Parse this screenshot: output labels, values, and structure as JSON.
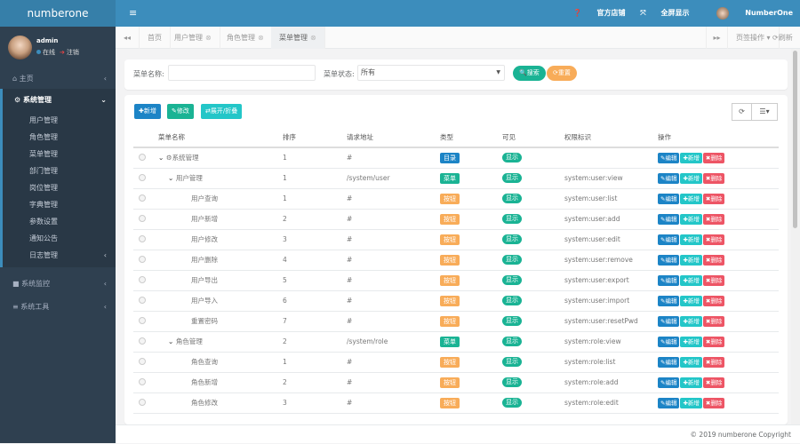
{
  "app": {
    "logo": "numberone"
  },
  "user": {
    "name": "admin",
    "status": "在线",
    "logout": "注销"
  },
  "sidebar": {
    "items": [
      {
        "label": "主页",
        "icon": "home-icon"
      },
      {
        "label": "系统管理",
        "icon": "gear-icon",
        "children": [
          "用户管理",
          "角色管理",
          "菜单管理",
          "部门管理",
          "岗位管理",
          "字典管理",
          "参数设置",
          "通知公告",
          "日志管理"
        ]
      },
      {
        "label": "系统监控",
        "icon": "video-icon"
      },
      {
        "label": "系统工具",
        "icon": "bars-icon"
      }
    ]
  },
  "header": {
    "store": "官方店铺",
    "fullscreen": "全屏显示",
    "username": "NumberOne"
  },
  "tabs": {
    "items": [
      "首页",
      "用户管理",
      "角色管理",
      "菜单管理"
    ],
    "page_ops": "页签操作",
    "refresh": "刷新"
  },
  "search": {
    "name_label": "菜单名称:",
    "name_value": "",
    "status_label": "菜单状态:",
    "status_value": "所有",
    "search_btn": "搜索",
    "reset_btn": "重置"
  },
  "toolbar": {
    "add": "新增",
    "edit": "修改",
    "expand": "展开/折叠"
  },
  "table": {
    "headers": [
      "菜单名称",
      "排序",
      "请求地址",
      "类型",
      "可见",
      "权限标识",
      "操作"
    ],
    "actions": {
      "edit": "编辑",
      "add": "新增",
      "delete": "删除"
    },
    "rows": [
      {
        "name": "系统管理",
        "level": 0,
        "expand": true,
        "icon": true,
        "sort": "1",
        "url": "#",
        "type": "目录",
        "visible": "显示",
        "perm": ""
      },
      {
        "name": "用户管理",
        "level": 1,
        "expand": true,
        "sort": "1",
        "url": "/system/user",
        "type": "菜单",
        "visible": "显示",
        "perm": "system:user:view"
      },
      {
        "name": "用户查询",
        "level": 2,
        "sort": "1",
        "url": "#",
        "type": "按钮",
        "visible": "显示",
        "perm": "system:user:list"
      },
      {
        "name": "用户新增",
        "level": 2,
        "sort": "2",
        "url": "#",
        "type": "按钮",
        "visible": "显示",
        "perm": "system:user:add"
      },
      {
        "name": "用户修改",
        "level": 2,
        "sort": "3",
        "url": "#",
        "type": "按钮",
        "visible": "显示",
        "perm": "system:user:edit"
      },
      {
        "name": "用户删除",
        "level": 2,
        "sort": "4",
        "url": "#",
        "type": "按钮",
        "visible": "显示",
        "perm": "system:user:remove"
      },
      {
        "name": "用户导出",
        "level": 2,
        "sort": "5",
        "url": "#",
        "type": "按钮",
        "visible": "显示",
        "perm": "system:user:export"
      },
      {
        "name": "用户导入",
        "level": 2,
        "sort": "6",
        "url": "#",
        "type": "按钮",
        "visible": "显示",
        "perm": "system:user:import"
      },
      {
        "name": "重置密码",
        "level": 2,
        "sort": "7",
        "url": "#",
        "type": "按钮",
        "visible": "显示",
        "perm": "system:user:resetPwd"
      },
      {
        "name": "角色管理",
        "level": 1,
        "expand": true,
        "sort": "2",
        "url": "/system/role",
        "type": "菜单",
        "visible": "显示",
        "perm": "system:role:view"
      },
      {
        "name": "角色查询",
        "level": 2,
        "sort": "1",
        "url": "#",
        "type": "按钮",
        "visible": "显示",
        "perm": "system:role:list"
      },
      {
        "name": "角色新增",
        "level": 2,
        "sort": "2",
        "url": "#",
        "type": "按钮",
        "visible": "显示",
        "perm": "system:role:add"
      },
      {
        "name": "角色修改",
        "level": 2,
        "sort": "3",
        "url": "#",
        "type": "按钮",
        "visible": "显示",
        "perm": "system:role:edit"
      }
    ]
  },
  "colors": {
    "header": "#3c8dbc",
    "sidebar": "#2f4050",
    "dir": "#1c84c6",
    "menu": "#1ab394",
    "button": "#f8ac59",
    "add": "#23c6c8",
    "delete": "#ed5565"
  },
  "footer": "© 2019 numberone Copyright",
  "watermark": "https://www.huzhan.com/ishop19171"
}
